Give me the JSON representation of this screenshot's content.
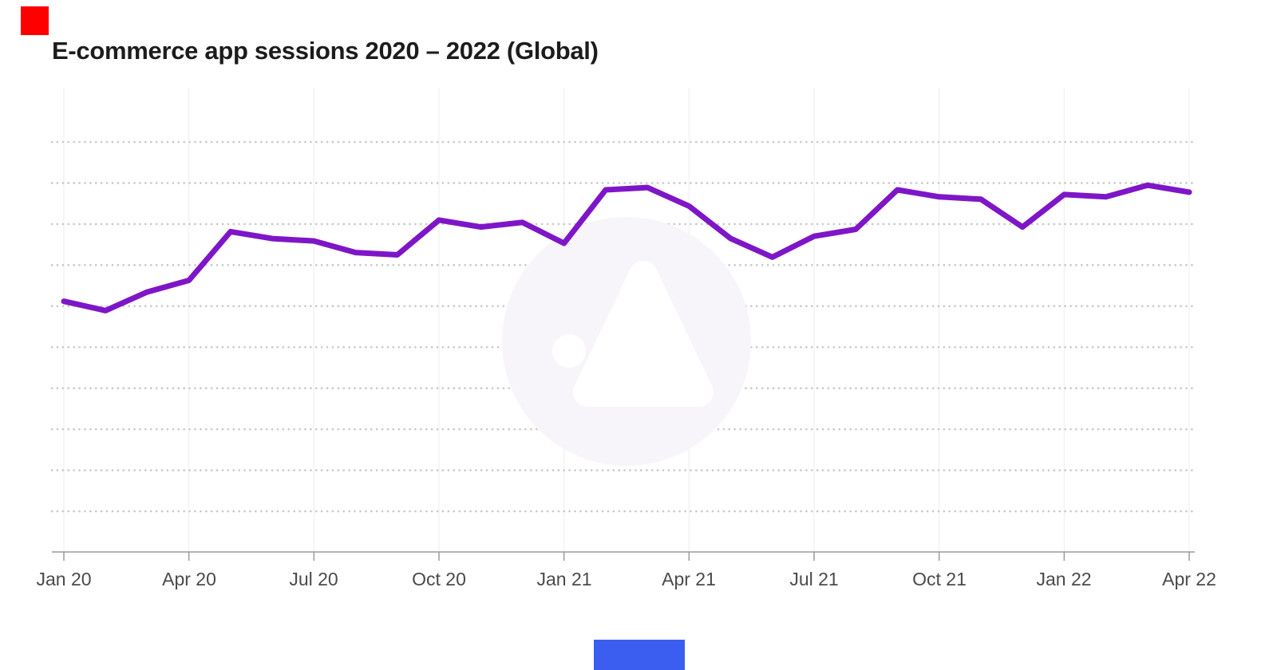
{
  "branding": {
    "top_left_square_color": "#ff0000",
    "bottom_bar_color": "#3b5ef0",
    "watermark_icon": "circular-a-logo-watermark",
    "watermark_color": "#f7f4fa"
  },
  "chart_data": {
    "type": "line",
    "title": "E-commerce app sessions 2020 – 2022 (Global)",
    "xlabel": "",
    "ylabel": "",
    "x": [
      "Jan 20",
      "Feb 20",
      "Mar 20",
      "Apr 20",
      "May 20",
      "Jun 20",
      "Jul 20",
      "Aug 20",
      "Sep 20",
      "Oct 20",
      "Nov 20",
      "Dec 20",
      "Jan 21",
      "Feb 21",
      "Mar 21",
      "Apr 21",
      "May 21",
      "Jun 21",
      "Jul 21",
      "Aug 21",
      "Sep 21",
      "Oct 21",
      "Nov 21",
      "Dec 21",
      "Jan 22",
      "Feb 22",
      "Mar 22",
      "Apr 22"
    ],
    "values": [
      54,
      52,
      56,
      58.5,
      69,
      67.5,
      67,
      64.5,
      64,
      71.5,
      70,
      71,
      66.5,
      78,
      78.5,
      74.5,
      67.5,
      63.5,
      68,
      69.5,
      78,
      76.5,
      76,
      70,
      77,
      76.5,
      79,
      77.5
    ],
    "values_note": "relative index 0-100 estimated from pixel positions; chart displays no y-axis tick labels",
    "x_tick_labels": [
      "Jan 20",
      "Apr 20",
      "Jul 20",
      "Oct 20",
      "Jan 21",
      "Apr 21",
      "Jul 21",
      "Oct 21",
      "Jan 22",
      "Apr 22"
    ],
    "y_tick_labels": [],
    "ylim": [
      0,
      100
    ],
    "grid": "dotted horizontal lines + faint solid vertical lines at quarterly ticks",
    "legend": "none",
    "line_color": "#7e16c8",
    "axis_color": "#9b9b9b",
    "grid_dot_color": "#c9c9c9",
    "vertical_grid_color": "#ededed",
    "tick_label_color": "#4a4a4a"
  }
}
